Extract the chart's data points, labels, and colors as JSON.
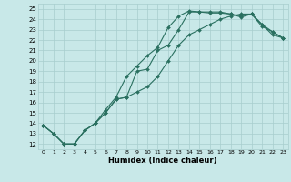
{
  "xlabel": "Humidex (Indice chaleur)",
  "bg_color": "#c8e8e8",
  "grid_color": "#a8cece",
  "line_color": "#2a7060",
  "xlim": [
    -0.5,
    23.5
  ],
  "ylim": [
    11.5,
    25.5
  ],
  "xticks": [
    0,
    1,
    2,
    3,
    4,
    5,
    6,
    7,
    8,
    9,
    10,
    11,
    12,
    13,
    14,
    15,
    16,
    17,
    18,
    19,
    20,
    21,
    22,
    23
  ],
  "yticks": [
    12,
    13,
    14,
    15,
    16,
    17,
    18,
    19,
    20,
    21,
    22,
    23,
    24,
    25
  ],
  "line1_x": [
    0,
    1,
    2,
    3,
    4,
    5,
    6,
    7,
    8,
    9,
    10,
    11,
    12,
    13,
    14,
    15,
    16,
    17,
    18,
    19,
    20,
    21,
    22,
    23
  ],
  "line1_y": [
    13.8,
    13.0,
    12.0,
    12.0,
    13.3,
    14.0,
    15.0,
    16.3,
    16.5,
    19.0,
    19.2,
    21.0,
    21.5,
    23.0,
    24.7,
    24.7,
    24.7,
    24.7,
    24.5,
    24.3,
    24.5,
    23.5,
    22.5,
    22.2
  ],
  "line2_x": [
    0,
    1,
    2,
    3,
    4,
    5,
    6,
    7,
    8,
    9,
    10,
    11,
    12,
    13,
    14,
    15,
    16,
    17,
    18,
    19,
    20,
    21,
    22,
    23
  ],
  "line2_y": [
    13.8,
    13.0,
    12.0,
    12.0,
    13.3,
    14.0,
    15.0,
    16.3,
    16.5,
    17.0,
    17.5,
    18.5,
    20.0,
    21.5,
    22.5,
    23.0,
    23.5,
    24.0,
    24.3,
    24.5,
    24.5,
    23.5,
    22.8,
    22.2
  ],
  "line3_x": [
    0,
    1,
    2,
    3,
    4,
    5,
    6,
    7,
    8,
    9,
    10,
    11,
    12,
    13,
    14,
    15,
    16,
    17,
    18,
    19,
    20,
    21,
    22,
    23
  ],
  "line3_y": [
    13.8,
    13.0,
    12.0,
    12.0,
    13.3,
    14.0,
    15.3,
    16.5,
    18.5,
    19.5,
    20.5,
    21.3,
    23.2,
    24.3,
    24.8,
    24.7,
    24.6,
    24.6,
    24.5,
    24.2,
    24.5,
    23.3,
    22.8,
    22.2
  ]
}
